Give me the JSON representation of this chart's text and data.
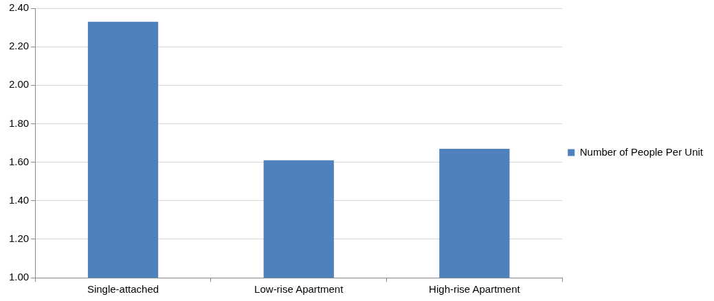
{
  "chart_data": {
    "type": "bar",
    "categories": [
      "Single-attached",
      "Low-rise Apartment",
      "High-rise Apartment"
    ],
    "series": [
      {
        "name": "Number of People Per Unit",
        "color": "#4f81bd",
        "values": [
          2.33,
          1.61,
          1.67
        ]
      }
    ],
    "ylim": [
      1,
      2.4
    ],
    "yticks": [
      {
        "value": 1,
        "label": "1.00"
      },
      {
        "value": 1.2,
        "label": "1.20"
      },
      {
        "value": 1.4,
        "label": "1.40"
      },
      {
        "value": 1.6,
        "label": "1.60"
      },
      {
        "value": 1.8,
        "label": "1.80"
      },
      {
        "value": 2,
        "label": "2.00"
      },
      {
        "value": 2.2,
        "label": "2.20"
      },
      {
        "value": 2.4,
        "label": "2.40"
      }
    ],
    "grid": "y",
    "legend": "right"
  }
}
